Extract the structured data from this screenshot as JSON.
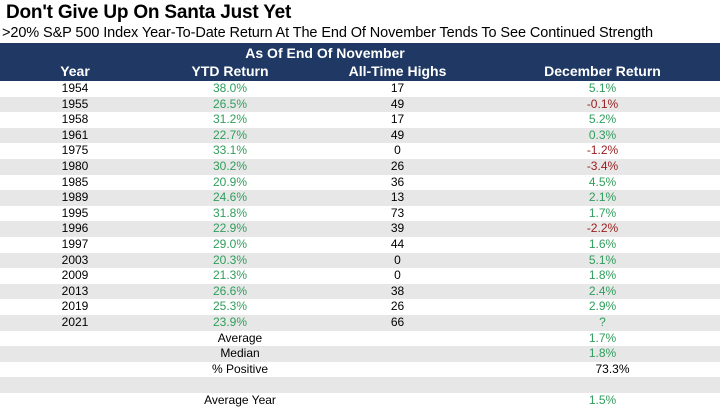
{
  "title": "Don't Give Up On Santa Just Yet",
  "subtitle": ">20% S&P 500 Index Year-To-Date Return At The End Of November Tends To See Continued Strength",
  "header": {
    "group": "As Of End Of November",
    "columns": [
      "Year",
      "YTD Return",
      "All-Time Highs",
      "December Return"
    ]
  },
  "chart_data": {
    "type": "table",
    "title": "Don't Give Up On Santa Just Yet",
    "subtitle": ">20% S&P 500 Index Year-To-Date Return At The End Of November Tends To See Continued Strength",
    "rows": [
      {
        "year": "1954",
        "ytd": "38.0%",
        "ath": "17",
        "dec": "5.1%",
        "sign": "pos"
      },
      {
        "year": "1955",
        "ytd": "26.5%",
        "ath": "49",
        "dec": "-0.1%",
        "sign": "neg"
      },
      {
        "year": "1958",
        "ytd": "31.2%",
        "ath": "17",
        "dec": "5.2%",
        "sign": "pos"
      },
      {
        "year": "1961",
        "ytd": "22.7%",
        "ath": "49",
        "dec": "0.3%",
        "sign": "pos"
      },
      {
        "year": "1975",
        "ytd": "33.1%",
        "ath": "0",
        "dec": "-1.2%",
        "sign": "neg"
      },
      {
        "year": "1980",
        "ytd": "30.2%",
        "ath": "26",
        "dec": "-3.4%",
        "sign": "neg"
      },
      {
        "year": "1985",
        "ytd": "20.9%",
        "ath": "36",
        "dec": "4.5%",
        "sign": "pos"
      },
      {
        "year": "1989",
        "ytd": "24.6%",
        "ath": "13",
        "dec": "2.1%",
        "sign": "pos"
      },
      {
        "year": "1995",
        "ytd": "31.8%",
        "ath": "73",
        "dec": "1.7%",
        "sign": "pos"
      },
      {
        "year": "1996",
        "ytd": "22.9%",
        "ath": "39",
        "dec": "-2.2%",
        "sign": "neg"
      },
      {
        "year": "1997",
        "ytd": "29.0%",
        "ath": "44",
        "dec": "1.6%",
        "sign": "pos"
      },
      {
        "year": "2003",
        "ytd": "20.3%",
        "ath": "0",
        "dec": "5.1%",
        "sign": "pos"
      },
      {
        "year": "2009",
        "ytd": "21.3%",
        "ath": "0",
        "dec": "1.8%",
        "sign": "pos"
      },
      {
        "year": "2013",
        "ytd": "26.6%",
        "ath": "38",
        "dec": "2.4%",
        "sign": "pos"
      },
      {
        "year": "2019",
        "ytd": "25.3%",
        "ath": "26",
        "dec": "2.9%",
        "sign": "pos"
      },
      {
        "year": "2021",
        "ytd": "23.9%",
        "ath": "66",
        "dec": "?",
        "sign": "pos"
      }
    ],
    "summary": [
      {
        "label": "Average",
        "value": "1.7%",
        "style": "pos"
      },
      {
        "label": "Median",
        "value": "1.8%",
        "style": "pos"
      },
      {
        "label": "% Positive",
        "value": "73.3%",
        "style": "plain"
      },
      {
        "label": "",
        "value": "",
        "style": "plain"
      },
      {
        "label": "Average Year",
        "value": "1.5%",
        "style": "pos"
      }
    ]
  },
  "colors": {
    "header_bg": "#1f3864",
    "positive": "#2f9e5b",
    "negative": "#9b1c1c",
    "stripe": "#e7e7e7"
  }
}
